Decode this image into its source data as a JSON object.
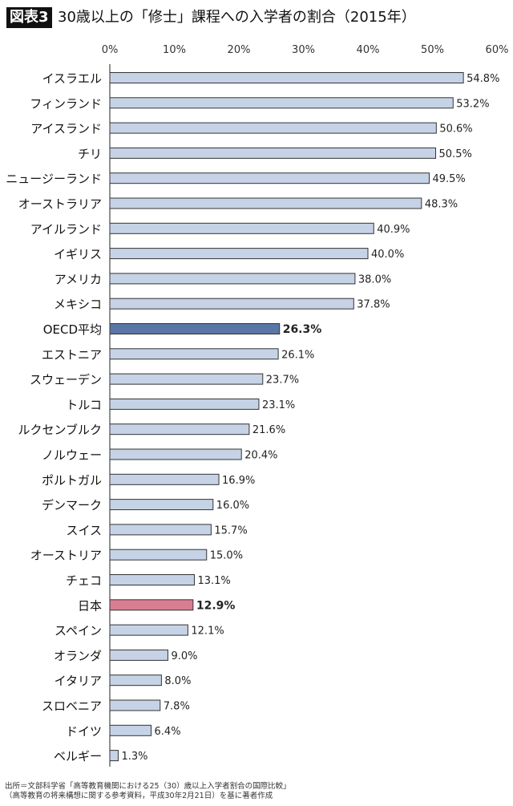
{
  "title_badge": "図表3",
  "title": "30歳以上の「修士」課程への入学者の割合（2015年）",
  "source_lines": [
    "出所＝文部科学省「高等教育機関における25（30）歳以上入学者割合の国際比較」",
    "（高等教育の将来構想に関する参考資料，平成30年2月21日）を基に著者作成"
  ],
  "colors": {
    "bar": "#c6d3e6",
    "bar_border": "#333333",
    "oecd": "#5a76a6",
    "japan": "#d97d90"
  },
  "chart_data": {
    "type": "bar",
    "orientation": "horizontal",
    "title": "30歳以上の「修士」課程への入学者の割合（2015年）",
    "xlim": [
      0,
      60
    ],
    "xticks": [
      "0%",
      "10%",
      "20%",
      "30%",
      "40%",
      "50%",
      "60%"
    ],
    "tick_values": [
      0,
      10,
      20,
      30,
      40,
      50,
      60
    ],
    "grid": false,
    "categories": [
      "イスラエル",
      "フィンランド",
      "アイスランド",
      "チリ",
      "ニュージーランド",
      "オーストラリア",
      "アイルランド",
      "イギリス",
      "アメリカ",
      "メキシコ",
      "OECD平均",
      "エストニア",
      "スウェーデン",
      "トルコ",
      "ルクセンブルク",
      "ノルウェー",
      "ポルトガル",
      "デンマーク",
      "スイス",
      "オーストリア",
      "チェコ",
      "日本",
      "スペイン",
      "オランダ",
      "イタリア",
      "スロベニア",
      "ドイツ",
      "ベルギー"
    ],
    "values": [
      54.8,
      53.2,
      50.6,
      50.5,
      49.5,
      48.3,
      40.9,
      40.0,
      38.0,
      37.8,
      26.3,
      26.1,
      23.7,
      23.1,
      21.6,
      20.4,
      16.9,
      16.0,
      15.7,
      15.0,
      13.1,
      12.9,
      12.1,
      9.0,
      8.0,
      7.8,
      6.4,
      1.3
    ],
    "value_labels": [
      "54.8%",
      "53.2%",
      "50.6%",
      "50.5%",
      "49.5%",
      "48.3%",
      "40.9%",
      "40.0%",
      "38.0%",
      "37.8%",
      "26.3%",
      "26.1%",
      "23.7%",
      "23.1%",
      "21.6%",
      "20.4%",
      "16.9%",
      "16.0%",
      "15.7%",
      "15.0%",
      "13.1%",
      "12.9%",
      "12.1%",
      "9.0%",
      "8.0%",
      "7.8%",
      "6.4%",
      "1.3%"
    ],
    "highlighted": {
      "OECD平均": "oecd",
      "日本": "japan"
    }
  }
}
